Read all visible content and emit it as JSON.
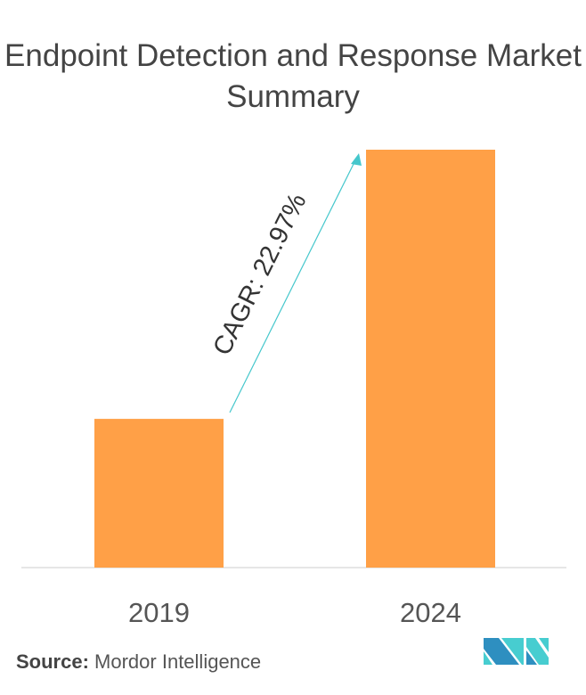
{
  "chart_data": {
    "type": "bar",
    "title": "Endpoint Detection and Response Market Summary",
    "categories": [
      "2019",
      "2024"
    ],
    "values": [
      1.0,
      2.81
    ],
    "xlabel": "",
    "ylabel": "",
    "ylim": [
      0,
      2.81
    ],
    "grid": false,
    "legend": "none",
    "bar_color": "#FFA047",
    "annotation": {
      "text": "CAGR: 22.97%",
      "color": "#45C7CC",
      "from": "2019",
      "to": "2024"
    }
  },
  "source": {
    "label": "Source:",
    "text": "Mordor Intelligence"
  },
  "logo": {
    "colors": [
      "#2E8FC0",
      "#47CDD0"
    ]
  }
}
